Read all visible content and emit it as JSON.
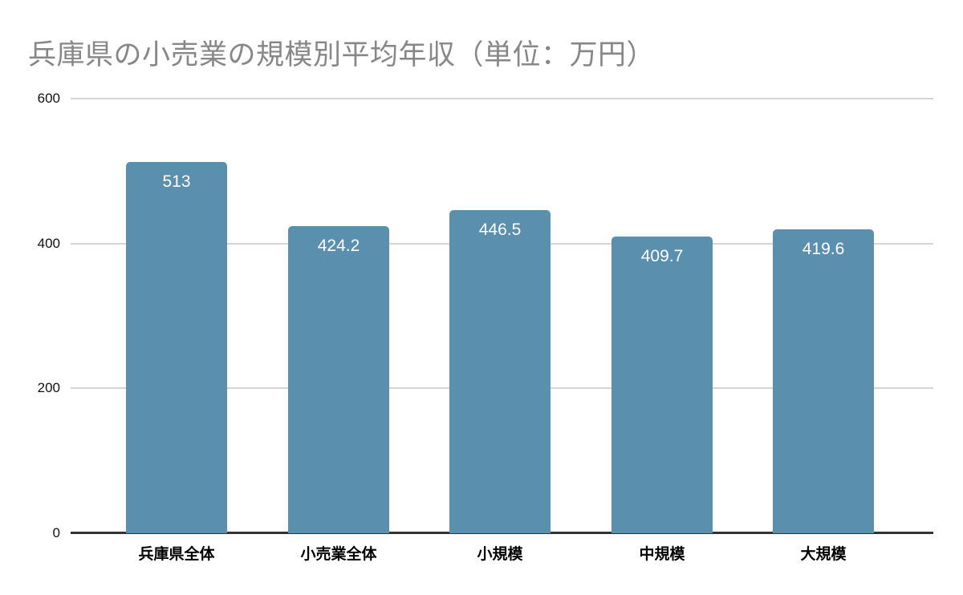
{
  "title": "兵庫県の小売業の規模別平均年収（単位：万円）",
  "colors": {
    "bar": "#5a90ae",
    "title_text": "#878787",
    "gridline": "#d5d5d5",
    "axis_line": "#333333",
    "value_label": "#ffffff",
    "tick_label": "#111111",
    "category_label": "#000000",
    "background": "#ffffff"
  },
  "chart_data": {
    "type": "bar",
    "title": "兵庫県の小売業の規模別平均年収（単位：万円）",
    "categories": [
      "兵庫県全体",
      "小売業全体",
      "小規模",
      "中規模",
      "大規模"
    ],
    "values": [
      513,
      424.2,
      446.5,
      409.7,
      419.6
    ],
    "value_labels": [
      "513",
      "424.2",
      "446.5",
      "409.7",
      "419.6"
    ],
    "xlabel": "",
    "ylabel": "",
    "ylim": [
      0,
      600
    ],
    "yticks": [
      0,
      200,
      400,
      600
    ],
    "ytick_labels": [
      "0",
      "200",
      "400",
      "600"
    ],
    "grid": true,
    "legend": false,
    "bar_orientation": "vertical"
  }
}
